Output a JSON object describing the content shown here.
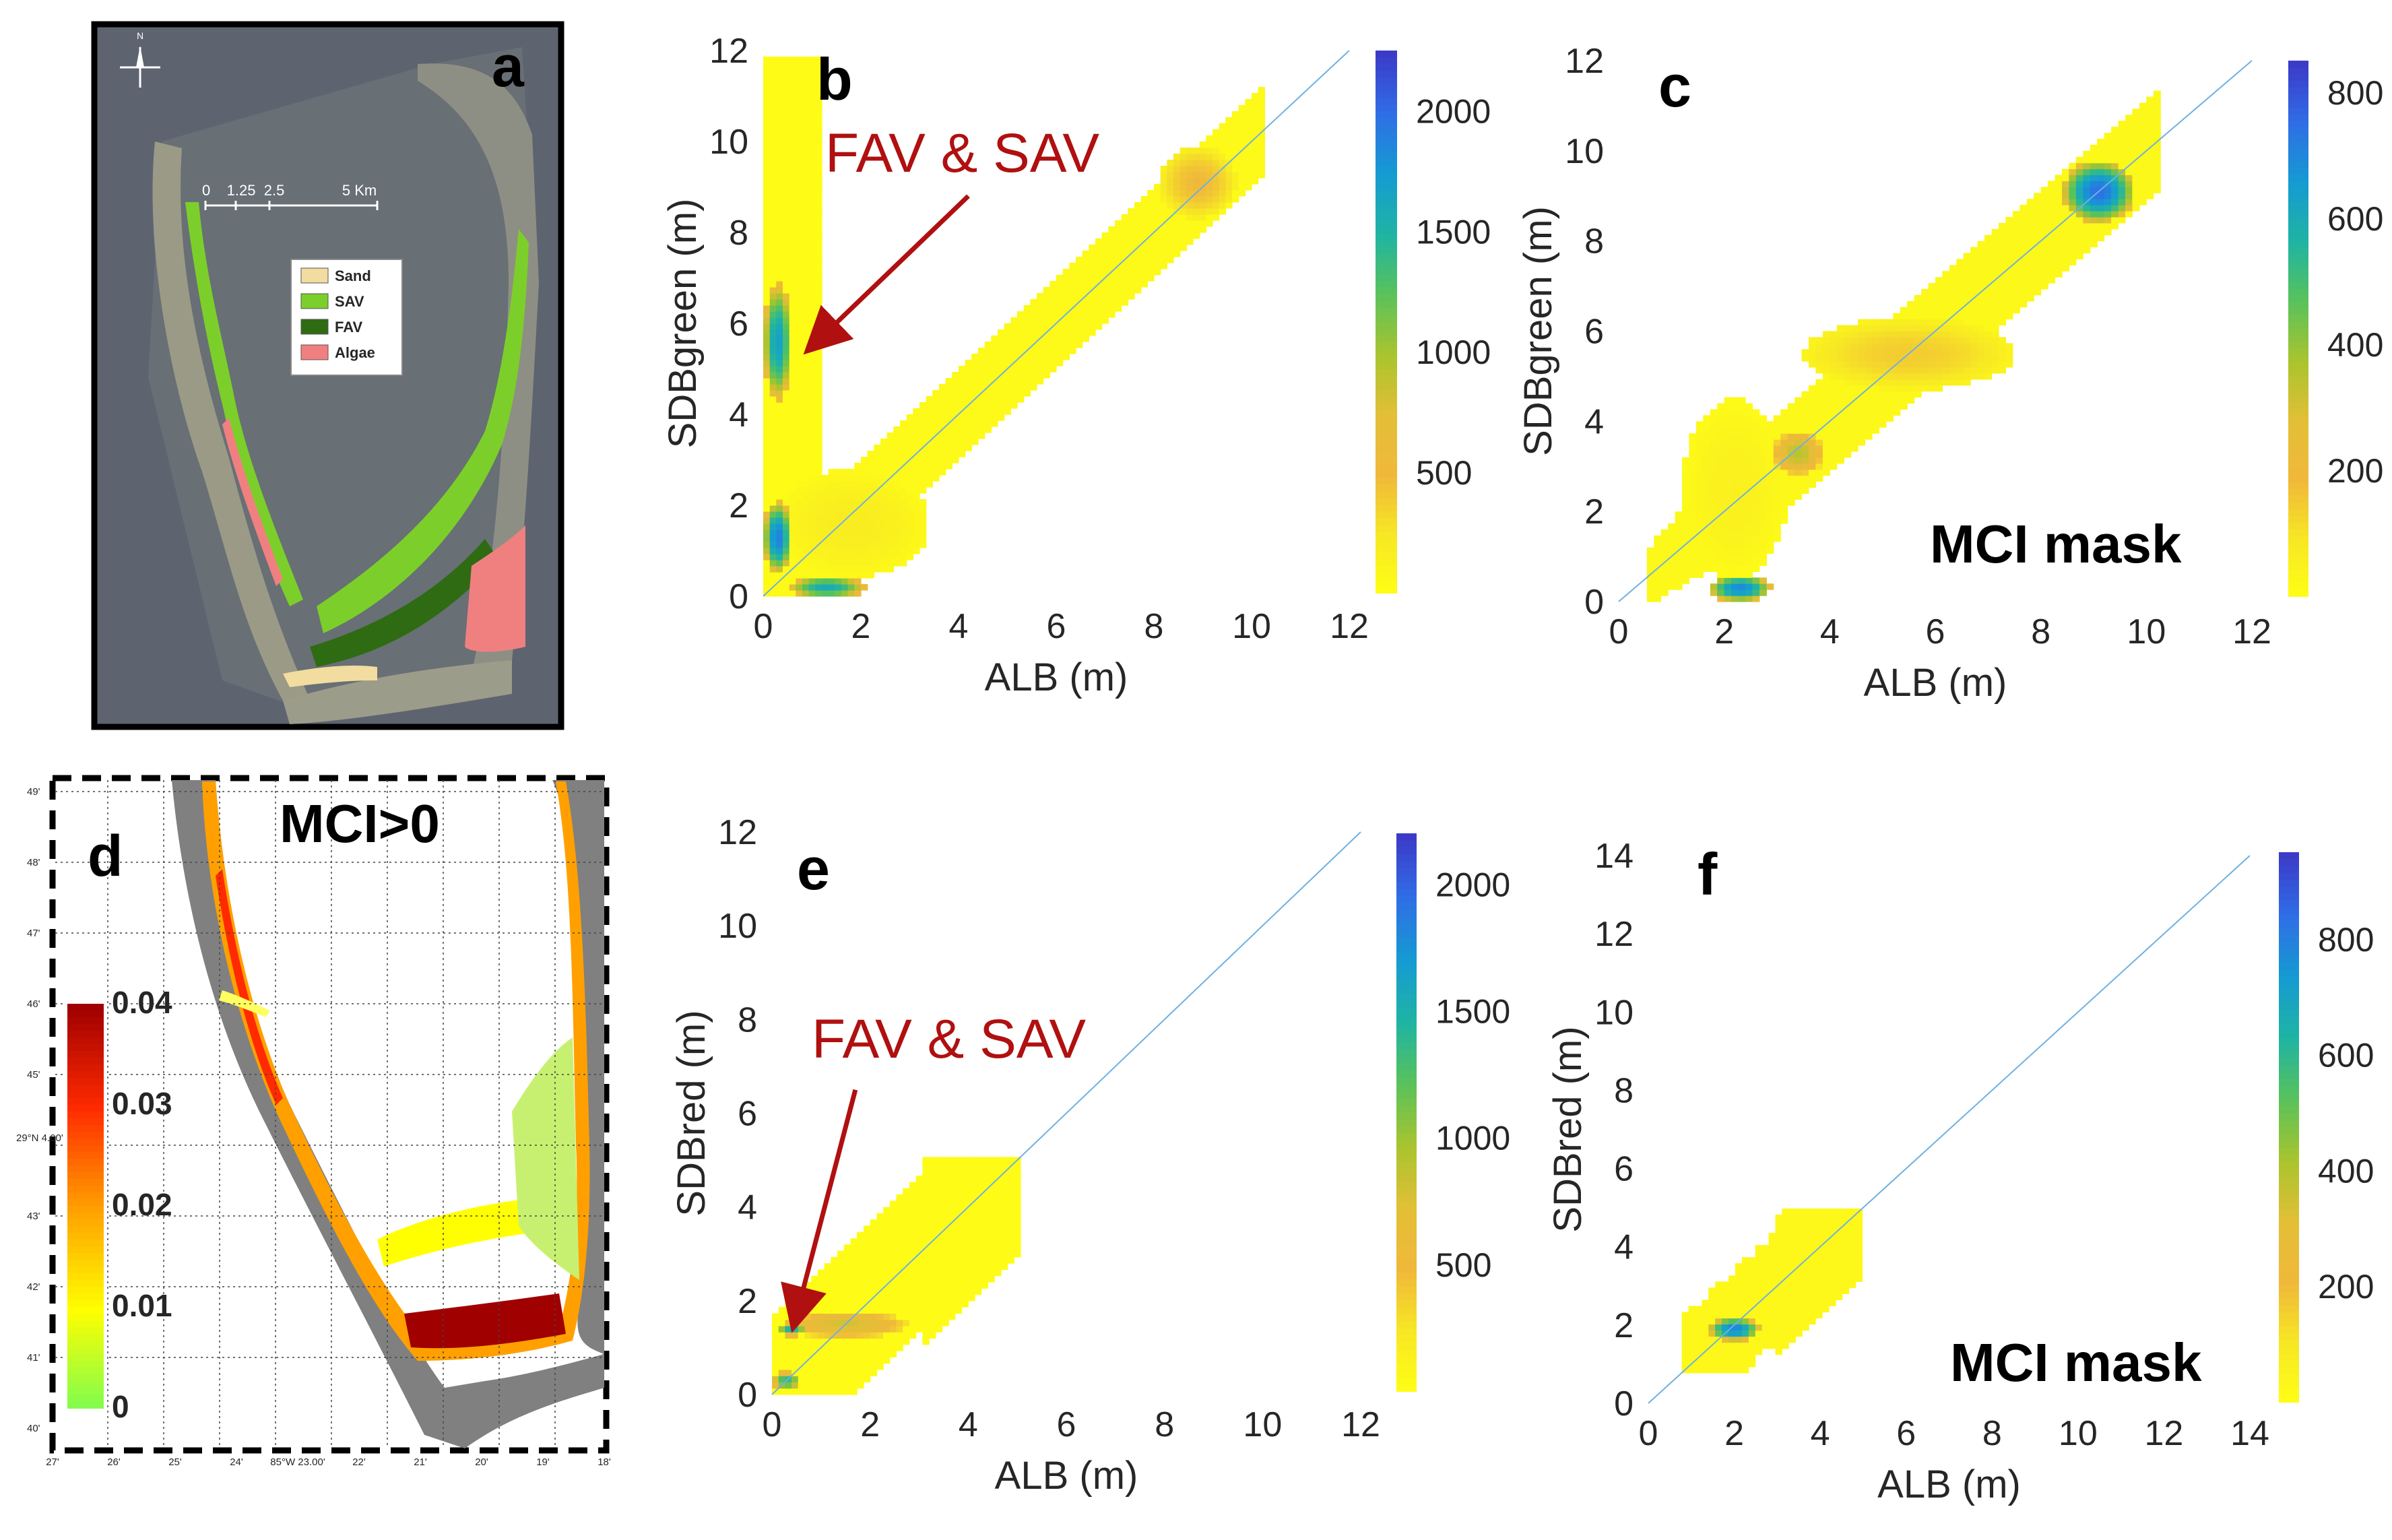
{
  "colors": {
    "annotation": "#b01010",
    "one_to_one": "#6fb0e0",
    "land_gray": "#808080",
    "water_gray": "#5d6470",
    "sav": "#7ccf2a",
    "fav": "#2e6b12",
    "algae": "#f08080",
    "sand": "#f2dca0"
  },
  "colormap_parula": [
    "#ffff14",
    "#f7e824",
    "#f0b83a",
    "#e3bf36",
    "#a9c42e",
    "#5ac25a",
    "#1fb4a3",
    "#159bd2",
    "#2f6ee6",
    "#3b3bc8"
  ],
  "colormap_mci": [
    "#7cfc50",
    "#ffff00",
    "#ffa000",
    "#ff2a00",
    "#a00000"
  ],
  "map_a": {
    "letter": "a",
    "north": "N",
    "scalebar_text": "0    1.25  2.5              5 Km",
    "legend": [
      {
        "label": "Sand",
        "color": "#f2dca0"
      },
      {
        "label": "SAV",
        "color": "#7ccf2a"
      },
      {
        "label": "FAV",
        "color": "#2e6b12"
      },
      {
        "label": "Algae",
        "color": "#f08080"
      }
    ]
  },
  "map_d": {
    "letter": "d",
    "title": "MCI>0",
    "colorbar_ticks": [
      "0.04",
      "0.03",
      "0.02",
      "0.01",
      "0"
    ],
    "colorbar_range": [
      0,
      0.04
    ],
    "lat_ticks": [
      "49'",
      "48'",
      "47'",
      "46'",
      "45'",
      "29°N 4.00'",
      "43'",
      "42'",
      "41'",
      "40'"
    ],
    "lon_ticks": [
      "27'",
      "26'",
      "25'",
      "24'",
      "85°W 23.00'",
      "22'",
      "21'",
      "20'",
      "19'",
      "18'"
    ]
  },
  "chart_data": [
    {
      "type": "heatmap",
      "letter": "b",
      "xlabel": "ALB (m)",
      "ylabel": "SDBgreen (m)",
      "xlim": [
        0,
        12
      ],
      "ylim": [
        0,
        12
      ],
      "xticks": [
        0,
        2,
        4,
        6,
        8,
        10,
        12
      ],
      "yticks": [
        0,
        2,
        4,
        6,
        8,
        10,
        12
      ],
      "colorbar_ticks": [
        500,
        1000,
        1500,
        2000
      ],
      "colorbar_range": [
        0,
        2250
      ],
      "one_to_one": true,
      "annotation": {
        "text": "FAV & SAV",
        "arrow_from": [
          4.2,
          8.8
        ],
        "arrow_to": [
          1.1,
          5.6
        ]
      },
      "regions": [
        {
          "shape": "band",
          "x0": 0.5,
          "x1": 10.2,
          "halfwidth": 1.0,
          "level": 60
        },
        {
          "shape": "vstrip",
          "x0": 0.0,
          "x1": 1.2,
          "y0": 0.0,
          "y1": 11.9,
          "level": 50
        },
        {
          "shape": "blob",
          "cx": 1.8,
          "cy": 1.6,
          "rx": 1.6,
          "ry": 1.2,
          "level": 200
        },
        {
          "shape": "blob",
          "cx": 8.9,
          "cy": 9.1,
          "rx": 0.8,
          "ry": 0.8,
          "level": 500
        },
        {
          "shape": "blob",
          "cx": 0.3,
          "cy": 5.6,
          "rx": 0.3,
          "ry": 1.3,
          "level": 1700
        },
        {
          "shape": "blob",
          "cx": 0.3,
          "cy": 1.3,
          "rx": 0.3,
          "ry": 0.8,
          "level": 1900
        },
        {
          "shape": "blob",
          "cx": 1.3,
          "cy": 0.2,
          "rx": 0.8,
          "ry": 0.25,
          "level": 1600
        }
      ]
    },
    {
      "type": "heatmap",
      "letter": "c",
      "label": "MCI mask",
      "xlabel": "ALB (m)",
      "ylabel": "SDBgreen (m)",
      "xlim": [
        0,
        12
      ],
      "ylim": [
        0,
        12
      ],
      "xticks": [
        0,
        2,
        4,
        6,
        8,
        10,
        12
      ],
      "yticks": [
        0,
        2,
        4,
        6,
        8,
        10,
        12
      ],
      "colorbar_ticks": [
        200,
        400,
        600,
        800
      ],
      "colorbar_range": [
        0,
        850
      ],
      "one_to_one": true,
      "regions": [
        {
          "shape": "band",
          "x0": 0.6,
          "x1": 10.2,
          "halfwidth": 1.1,
          "level": 30
        },
        {
          "shape": "blob",
          "cx": 2.2,
          "cy": 2.5,
          "rx": 1.0,
          "ry": 2.0,
          "level": 60
        },
        {
          "shape": "blob",
          "cx": 3.4,
          "cy": 3.3,
          "rx": 0.5,
          "ry": 0.5,
          "level": 350
        },
        {
          "shape": "blob",
          "cx": 2.3,
          "cy": 0.3,
          "rx": 0.6,
          "ry": 0.3,
          "level": 700
        },
        {
          "shape": "blob",
          "cx": 9.1,
          "cy": 9.1,
          "rx": 0.7,
          "ry": 0.7,
          "level": 750
        },
        {
          "shape": "blob",
          "cx": 5.5,
          "cy": 5.5,
          "rx": 2.0,
          "ry": 0.8,
          "level": 150
        }
      ]
    },
    {
      "type": "heatmap",
      "letter": "e",
      "xlabel": "ALB (m)",
      "ylabel": "SDBred (m)",
      "xlim": [
        0,
        12
      ],
      "ylim": [
        0,
        12
      ],
      "xticks": [
        0,
        2,
        4,
        6,
        8,
        10,
        12
      ],
      "yticks": [
        0,
        2,
        4,
        6,
        8,
        10,
        12
      ],
      "colorbar_ticks": [
        500,
        1000,
        1500,
        2000
      ],
      "colorbar_range": [
        0,
        2200
      ],
      "one_to_one": true,
      "annotation": {
        "text": "FAV & SAV",
        "arrow_from": [
          1.7,
          6.5
        ],
        "arrow_to": [
          0.5,
          1.7
        ]
      },
      "regions": [
        {
          "shape": "rect",
          "x0": 0.0,
          "x1": 5.0,
          "y0": 0.0,
          "y1": 5.0,
          "clip": "band",
          "halfwidth": 1.6,
          "level": 30
        },
        {
          "shape": "blob",
          "cx": 1.5,
          "cy": 1.5,
          "rx": 1.3,
          "ry": 0.3,
          "level": 800
        },
        {
          "shape": "blob",
          "cx": 0.4,
          "cy": 1.4,
          "rx": 0.3,
          "ry": 0.15,
          "level": 1500
        },
        {
          "shape": "blob",
          "cx": 0.3,
          "cy": 0.3,
          "rx": 0.3,
          "ry": 0.2,
          "level": 1400
        }
      ]
    },
    {
      "type": "heatmap",
      "letter": "f",
      "label": "MCI mask",
      "xlabel": "ALB (m)",
      "ylabel": "SDBred (m)",
      "xlim": [
        0,
        14
      ],
      "ylim": [
        0,
        14
      ],
      "xticks": [
        0,
        2,
        4,
        6,
        8,
        10,
        12,
        14
      ],
      "yticks": [
        0,
        2,
        4,
        6,
        8,
        10,
        12,
        14
      ],
      "colorbar_ticks": [
        200,
        400,
        600,
        800
      ],
      "colorbar_range": [
        0,
        950
      ],
      "one_to_one": true,
      "regions": [
        {
          "shape": "rect",
          "x0": 0.8,
          "x1": 5.0,
          "y0": 0.8,
          "y1": 5.0,
          "clip": "band",
          "halfwidth": 1.4,
          "level": 30
        },
        {
          "shape": "blob",
          "cx": 2.0,
          "cy": 1.9,
          "rx": 0.6,
          "ry": 0.3,
          "level": 800
        }
      ]
    }
  ]
}
